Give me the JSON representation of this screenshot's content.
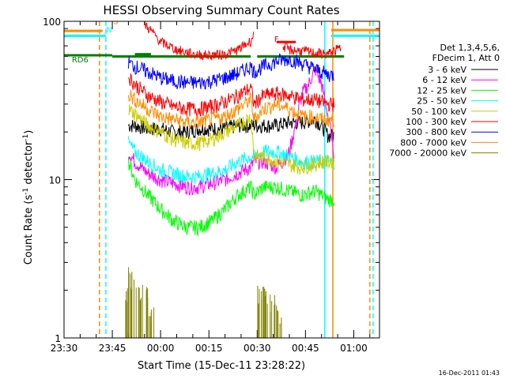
{
  "chart_data": {
    "type": "line",
    "title": "HESSI Observing Summary Count Rates",
    "xlabel": "Start Time (15-Dec-11 23:28:22)",
    "ylabel_main": "Count Rate (s",
    "ylabel_sup1": "-1",
    "ylabel_mid": " detector",
    "ylabel_sup2": "-1",
    "ylabel_end": ")",
    "yscale": "log",
    "ylim": [
      1,
      100
    ],
    "xlim_minutes": [
      -30,
      68
    ],
    "x_ticks": [
      {
        "label": "23:30",
        "t": -30
      },
      {
        "label": "23:45",
        "t": -15
      },
      {
        "label": "00:00",
        "t": 0
      },
      {
        "label": "00:15",
        "t": 15
      },
      {
        "label": "00:30",
        "t": 30
      },
      {
        "label": "00:45",
        "t": 45
      },
      {
        "label": "01:00",
        "t": 60
      }
    ],
    "y_ticks": [
      {
        "label": "1",
        "v": 1
      },
      {
        "label": "10",
        "v": 10
      },
      {
        "label": "100",
        "v": 100
      }
    ],
    "legend_header": [
      "Det 1,3,4,5,6,",
      "FDecim 1, Att 0"
    ],
    "series": [
      {
        "name": "3 - 6 keV",
        "color": "#000000",
        "t": [
          -10,
          -8,
          -4,
          0,
          4,
          8,
          12,
          16,
          20,
          24,
          28,
          29,
          32,
          36,
          40,
          44,
          48,
          50,
          52,
          54
        ],
        "values": [
          22,
          22,
          21,
          21,
          20,
          20,
          21,
          21,
          21,
          22,
          22,
          22,
          22,
          22,
          23,
          23,
          24,
          22,
          19,
          19
        ]
      },
      {
        "name": "6 - 12 keV",
        "color": "#ff00ff",
        "t": [
          -10,
          -8,
          -4,
          0,
          4,
          8,
          12,
          16,
          20,
          24,
          28,
          29,
          32,
          36,
          38,
          40,
          42,
          44,
          46,
          48,
          50,
          52,
          54
        ],
        "values": [
          15,
          13,
          11,
          10,
          9.5,
          9,
          9,
          9.5,
          10,
          11,
          12,
          13,
          13,
          12,
          13,
          15,
          22,
          35,
          40,
          50,
          40,
          25,
          14
        ]
      },
      {
        "name": "12 - 25 keV",
        "color": "#00ff00",
        "t": [
          -10,
          -8,
          -4,
          0,
          4,
          8,
          12,
          16,
          20,
          24,
          28,
          29,
          32,
          36,
          40,
          44,
          48,
          50,
          52,
          54
        ],
        "values": [
          13,
          10,
          8,
          6.5,
          5.5,
          5,
          5,
          5.5,
          6.5,
          8,
          9,
          8,
          9,
          9,
          8.5,
          8,
          8.5,
          8,
          7.5,
          7.5
        ]
      },
      {
        "name": "25 - 50 keV",
        "color": "#00ffff",
        "t": [
          -10,
          -8,
          -4,
          0,
          4,
          8,
          12,
          16,
          20,
          24,
          28,
          29,
          32,
          36,
          40,
          44,
          48,
          50,
          52,
          54
        ],
        "values": [
          17,
          15,
          13,
          11.5,
          11,
          10.5,
          10.5,
          11,
          11.5,
          13,
          14,
          14,
          15,
          15,
          14,
          13,
          13,
          13,
          13,
          13
        ]
      },
      {
        "name": "50 - 100 keV",
        "color": "#cccc00",
        "t": [
          -10,
          -8,
          -4,
          0,
          4,
          8,
          12,
          16,
          20,
          24,
          28,
          29,
          32,
          36,
          40,
          44,
          48,
          50,
          52,
          54
        ],
        "values": [
          28,
          26,
          22,
          20,
          18,
          17,
          17,
          18,
          20,
          22,
          25,
          14,
          14,
          13,
          12.5,
          12,
          12.5,
          13,
          13,
          13
        ]
      },
      {
        "name": "100 - 300 keV",
        "color": "#ff0000",
        "t": [
          -10,
          -8,
          -4,
          0,
          4,
          8,
          12,
          16,
          20,
          24,
          28,
          29,
          32,
          36,
          40,
          44,
          48,
          50,
          52,
          54
        ],
        "values": [
          45,
          40,
          34,
          31,
          29,
          28,
          28,
          29,
          31,
          34,
          38,
          30,
          34,
          35,
          34,
          32,
          32,
          31,
          30,
          30
        ]
      },
      {
        "name": "300 - 800 keV",
        "color": "#0000ff",
        "t": [
          -10,
          -8,
          -4,
          0,
          4,
          8,
          12,
          16,
          20,
          24,
          28,
          29,
          32,
          36,
          40,
          44,
          48,
          50,
          52,
          54
        ],
        "values": [
          55,
          52,
          48,
          44,
          42,
          41,
          41,
          42,
          44,
          47,
          52,
          48,
          52,
          56,
          58,
          54,
          50,
          48,
          46,
          46
        ]
      },
      {
        "name": "800 - 7000 keV",
        "color": "#ff8c00",
        "t": [
          -10,
          -8,
          -4,
          0,
          4,
          8,
          12,
          16,
          20,
          24,
          28,
          29,
          32,
          36,
          40,
          44,
          48,
          50,
          52,
          54
        ],
        "values": [
          35,
          32,
          28,
          25,
          24,
          23,
          23,
          24,
          25,
          28,
          32,
          24,
          28,
          30,
          28,
          25,
          25,
          24,
          24,
          24
        ]
      },
      {
        "name": "7000 - 20000 keV",
        "color": "#808000",
        "t": [
          -11,
          -10,
          -8,
          -6,
          -4,
          30,
          32,
          34,
          36
        ],
        "values": [
          2,
          2.8,
          2,
          2,
          1.5,
          2,
          2,
          1.8,
          1.5
        ]
      }
    ],
    "upper_red_segments": [
      {
        "t": [
          -5,
          0,
          5,
          10,
          15,
          20,
          24,
          28,
          29
        ],
        "values": [
          96,
          74,
          66,
          62,
          61,
          62,
          66,
          75,
          82
        ]
      },
      {
        "t": [
          38,
          40,
          44,
          48,
          52,
          56
        ],
        "values": [
          70,
          66,
          65,
          63,
          62,
          68
        ]
      }
    ],
    "annotations": [
      {
        "label": "S",
        "color": "#ff8c00",
        "t": -14,
        "v": 96
      },
      {
        "label": "N",
        "color": "#00ffff",
        "t": -16,
        "v": 85
      },
      {
        "label": "RD6",
        "color": "#008000",
        "t": -25,
        "v": 55
      },
      {
        "label": "F",
        "color": "#ff0000",
        "t": 36,
        "v": 74
      }
    ],
    "footer": "16-Dec-2011 01:43"
  }
}
